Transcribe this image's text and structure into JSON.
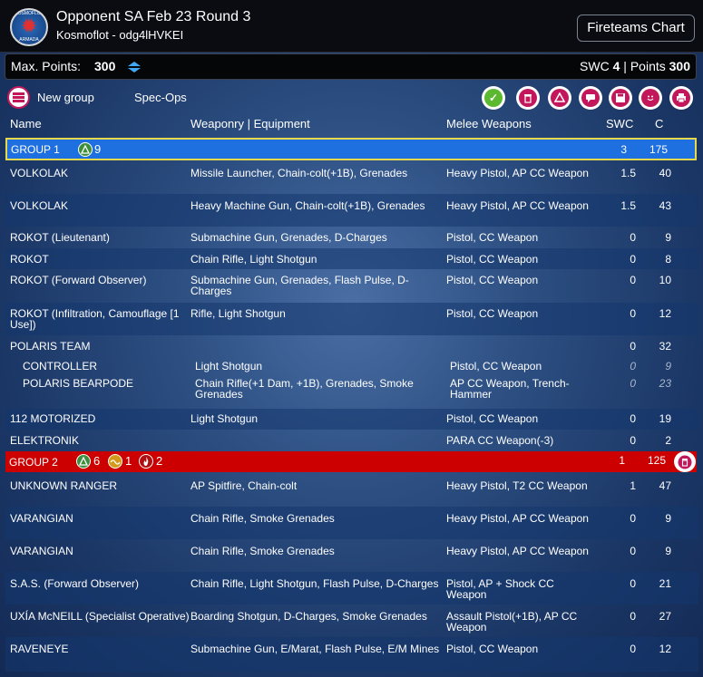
{
  "header": {
    "title": "Opponent SA Feb 23 Round 3",
    "subtitle": "Kosmoflot - odg4lHVKEI",
    "logo_top_text": "KOSMOFLOT",
    "logo_bottom_text": "ARMADA",
    "fireteams_button": "Fireteams Chart"
  },
  "points_bar": {
    "max_points_label": "Max. Points:",
    "max_points_value": "300",
    "swc_label": "SWC",
    "swc_value": "4",
    "separator": "|",
    "points_label": "Points",
    "points_value": "300"
  },
  "toolbar": {
    "new_group_label": "New group",
    "spec_ops_label": "Spec-Ops",
    "icons": [
      "check-icon",
      "trash-icon",
      "triangle-order-icon",
      "chat-icon",
      "save-icon",
      "smiley-icon",
      "print-icon"
    ]
  },
  "columns": {
    "name": "Name",
    "weaponry": "Weaponry | Equipment",
    "melee": "Melee Weapons",
    "swc": "SWC",
    "c": "C"
  },
  "group1": {
    "label": "GROUP 1",
    "regular_orders": "9",
    "swc": "3",
    "c": "175",
    "rows": [
      {
        "name": "VOLKOLAK",
        "weapons": "Missile Launcher, Chain-colt(+1B), Grenades",
        "melee": "Heavy Pistol, AP CC Weapon",
        "swc": "1.5",
        "c": "40"
      },
      {
        "name": "VOLKOLAK",
        "weapons": "Heavy Machine Gun, Chain-colt(+1B), Grenades",
        "melee": "Heavy Pistol, AP CC Weapon",
        "swc": "1.5",
        "c": "43"
      },
      {
        "name": "ROKOT (Lieutenant)",
        "weapons": "Submachine Gun, Grenades, D-Charges",
        "melee": "Pistol, CC Weapon",
        "swc": "0",
        "c": "9"
      },
      {
        "name": "ROKOT",
        "weapons": "Chain Rifle, Light Shotgun",
        "melee": "Pistol, CC Weapon",
        "swc": "0",
        "c": "8"
      },
      {
        "name": "ROKOT (Forward Observer)",
        "weapons": "Submachine Gun, Grenades, Flash Pulse, D-Charges",
        "melee": "Pistol, CC Weapon",
        "swc": "0",
        "c": "10"
      },
      {
        "name": "ROKOT (Infiltration, Camouflage [1 Use])",
        "weapons": "Rifle, Light Shotgun",
        "melee": "Pistol, CC Weapon",
        "swc": "0",
        "c": "12"
      },
      {
        "name": "POLARIS TEAM",
        "weapons": "",
        "melee": "",
        "swc": "0",
        "c": "32"
      },
      {
        "name": "CONTROLLER",
        "weapons": "Light Shotgun",
        "melee": "Pistol, CC Weapon",
        "swc": "0",
        "c": "9"
      },
      {
        "name": "POLARIS BEARPODE",
        "weapons": "Chain Rifle(+1 Dam, +1B), Grenades, Smoke Grenades",
        "melee": "AP CC Weapon, Trench-Hammer",
        "swc": "0",
        "c": "23"
      },
      {
        "name": "112 MOTORIZED",
        "weapons": "Light Shotgun",
        "melee": "Pistol, CC Weapon",
        "swc": "0",
        "c": "19"
      },
      {
        "name": "ELEKTRONIK",
        "weapons": "",
        "melee": "PARA CC Weapon(-3)",
        "swc": "0",
        "c": "2"
      }
    ]
  },
  "group2": {
    "label": "GROUP 2",
    "regular_orders": "6",
    "irregular_orders": "1",
    "impetuous_orders": "2",
    "swc": "1",
    "c": "125",
    "rows": [
      {
        "name": "UNKNOWN RANGER",
        "weapons": "AP Spitfire, Chain-colt",
        "melee": "Heavy Pistol, T2 CC Weapon",
        "swc": "1",
        "c": "47"
      },
      {
        "name": "VARANGIAN",
        "weapons": "Chain Rifle, Smoke Grenades",
        "melee": "Heavy Pistol, AP CC Weapon",
        "swc": "0",
        "c": "9"
      },
      {
        "name": "VARANGIAN",
        "weapons": "Chain Rifle, Smoke Grenades",
        "melee": "Heavy Pistol, AP CC Weapon",
        "swc": "0",
        "c": "9"
      },
      {
        "name": "S.A.S. (Forward Observer)",
        "weapons": "Chain Rifle, Light Shotgun, Flash Pulse, D-Charges",
        "melee": "Pistol, AP + Shock CC Weapon",
        "swc": "0",
        "c": "21"
      },
      {
        "name": "UXÍA McNEILL (Specialist Operative)",
        "weapons": "Boarding Shotgun, D-Charges, Smoke Grenades",
        "melee": "Assault Pistol(+1B), AP CC Weapon",
        "swc": "0",
        "c": "27"
      },
      {
        "name": "RAVENEYE",
        "weapons": "Submachine Gun, E/Marat, Flash Pulse, E/M Mines",
        "melee": "Pistol, CC Weapon",
        "swc": "0",
        "c": "12"
      }
    ]
  }
}
